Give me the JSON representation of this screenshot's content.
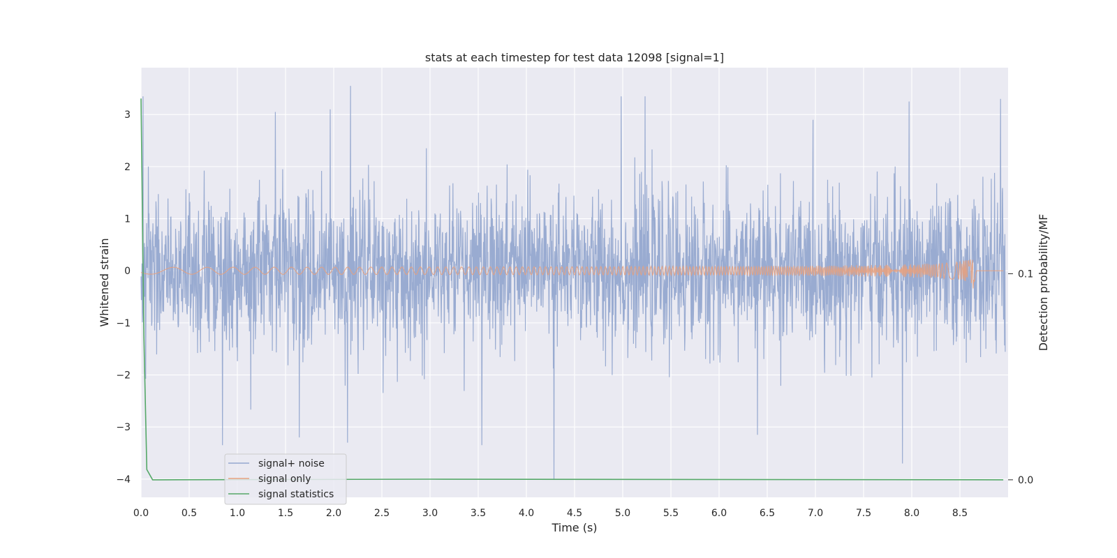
{
  "chart_data": {
    "type": "line",
    "title": "stats at each timestep for test data 12098 [signal=1]",
    "xlabel": "Time (s)",
    "ylabel": "Whitened strain",
    "y2label": "Detection probability/MF",
    "xlim": [
      0.0,
      9.0
    ],
    "ylim": [
      -4.35,
      3.9
    ],
    "y2lim": [
      -0.0085,
      0.2
    ],
    "x_ticks": [
      "0.0",
      "0.5",
      "1.0",
      "1.5",
      "2.0",
      "2.5",
      "3.0",
      "3.5",
      "4.0",
      "4.5",
      "5.0",
      "5.5",
      "6.0",
      "6.5",
      "7.0",
      "7.5",
      "8.0",
      "8.5"
    ],
    "x_tick_values": [
      0.0,
      0.5,
      1.0,
      1.5,
      2.0,
      2.5,
      3.0,
      3.5,
      4.0,
      4.5,
      5.0,
      5.5,
      6.0,
      6.5,
      7.0,
      7.5,
      8.0,
      8.5
    ],
    "y_ticks": [
      "3",
      "2",
      "1",
      "0",
      "−1",
      "−2",
      "−3",
      "−4"
    ],
    "y_tick_values": [
      3,
      2,
      1,
      0,
      -1,
      -2,
      -3,
      -4
    ],
    "y2_ticks": [
      "0.1",
      "0.0"
    ],
    "y2_tick_values": [
      0.1,
      0.0
    ],
    "grid": true,
    "legend_position": "lower-left",
    "series": [
      {
        "name": "signal+ noise",
        "color": "#95a8cf",
        "axis": "left",
        "envelope_typical": 1.9,
        "peaks": [
          {
            "x": 0.02,
            "y": 3.35
          },
          {
            "x": 0.85,
            "y": -3.35
          },
          {
            "x": 1.4,
            "y": 3.05
          },
          {
            "x": 1.65,
            "y": -3.2
          },
          {
            "x": 1.97,
            "y": 3.1
          },
          {
            "x": 2.18,
            "y": 3.55
          },
          {
            "x": 2.15,
            "y": -3.3
          },
          {
            "x": 3.55,
            "y": -3.35
          },
          {
            "x": 4.3,
            "y": -4.0
          },
          {
            "x": 5.0,
            "y": 3.35
          },
          {
            "x": 5.25,
            "y": 3.35
          },
          {
            "x": 6.42,
            "y": -3.15
          },
          {
            "x": 8.0,
            "y": 3.25
          },
          {
            "x": 7.93,
            "y": -3.7
          },
          {
            "x": 8.95,
            "y": 3.3
          }
        ]
      },
      {
        "name": "signal only",
        "color": "#e6a180",
        "axis": "left",
        "chirp_start": 0.0,
        "chirp_merger": 8.65,
        "chirp_peak_amplitude": 0.5
      },
      {
        "name": "signal statistics",
        "color": "#55a868",
        "axis": "right",
        "x": [
          0.0,
          0.03,
          0.06,
          0.12,
          0.2,
          3.0,
          8.95
        ],
        "y": [
          0.185,
          0.07,
          0.005,
          0.0,
          0.0,
          0.0003,
          0.0
        ]
      }
    ]
  }
}
